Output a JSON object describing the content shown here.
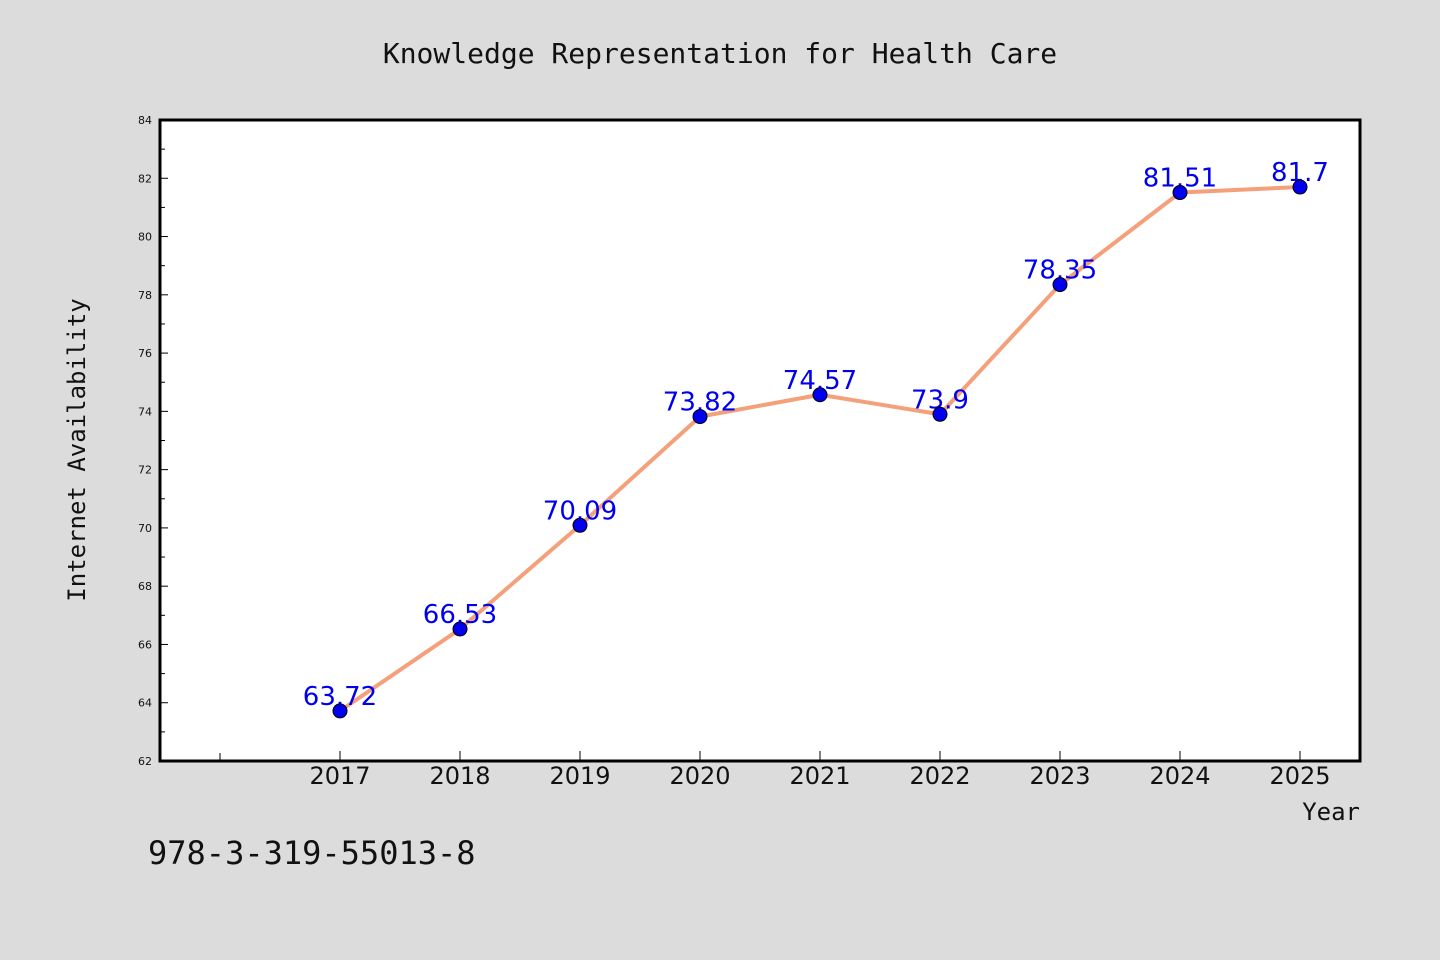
{
  "chart_data": {
    "type": "line",
    "title": "Knowledge Representation for Health Care",
    "xlabel": "Year",
    "ylabel": "Internet Availability",
    "categories": [
      "2017",
      "2018",
      "2019",
      "2020",
      "2021",
      "2022",
      "2023",
      "2024",
      "2025"
    ],
    "values": [
      63.72,
      66.53,
      70.09,
      73.82,
      74.57,
      73.9,
      78.35,
      81.51,
      81.7
    ],
    "data_labels": [
      "63.72",
      "66.53",
      "70.09",
      "73.82",
      "74.57",
      "73.9",
      "78.35",
      "81.51",
      "81.7"
    ],
    "ylim": [
      62,
      84
    ],
    "yticks": [
      62,
      64,
      66,
      68,
      70,
      72,
      74,
      76,
      78,
      80,
      82,
      84
    ],
    "grid": false,
    "line_color": "#f4a07a",
    "marker_color": "#0000ee",
    "label_color": "#0000ee"
  },
  "footer_text": "978-3-319-55013-8"
}
